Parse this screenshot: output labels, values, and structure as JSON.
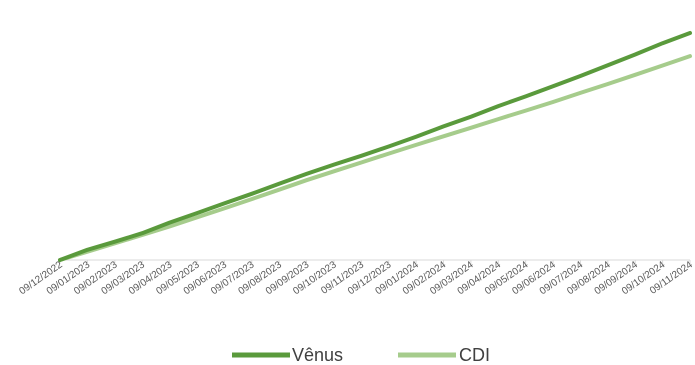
{
  "chart_data": {
    "type": "line",
    "title": "",
    "xlabel": "",
    "ylabel": "",
    "y_axis_shown": false,
    "grid": false,
    "legend_position": "bottom",
    "categories": [
      "09/12/2022",
      "09/01/2023",
      "09/02/2023",
      "09/03/2023",
      "09/04/2023",
      "09/05/2023",
      "09/06/2023",
      "09/07/2023",
      "09/08/2023",
      "09/09/2023",
      "09/10/2023",
      "09/11/2023",
      "09/12/2023",
      "09/01/2024",
      "09/02/2024",
      "09/03/2024",
      "09/04/2024",
      "09/05/2024",
      "09/06/2024",
      "09/07/2024",
      "09/08/2024",
      "09/09/2024",
      "09/10/2024",
      "09/11/2024"
    ],
    "series": [
      {
        "name": "Vênus",
        "color": "#5a9a3c",
        "values": [
          0.0,
          5.2,
          9.3,
          13.6,
          19.0,
          23.8,
          28.7,
          33.6,
          38.7,
          43.7,
          48.4,
          52.9,
          57.6,
          62.5,
          67.8,
          72.7,
          78.1,
          83.0,
          88.2,
          93.4,
          98.8,
          104.3,
          110.0,
          115.2
        ]
      },
      {
        "name": "CDI",
        "color": "#a6cc8c",
        "values": [
          0.0,
          4.2,
          8.5,
          12.7,
          17.0,
          21.6,
          26.2,
          30.9,
          35.7,
          40.5,
          45.0,
          49.5,
          54.0,
          58.4,
          62.8,
          67.1,
          71.5,
          75.8,
          80.2,
          84.8,
          89.3,
          94.0,
          98.7,
          103.5
        ]
      }
    ]
  }
}
